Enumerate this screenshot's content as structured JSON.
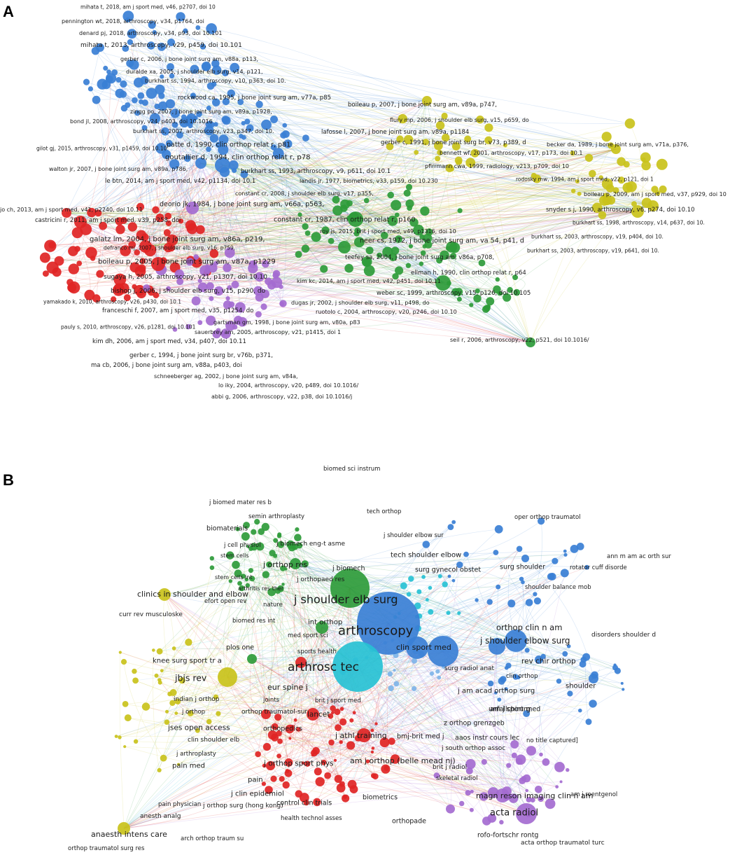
{
  "colors": {
    "blue": "#3a7fd5",
    "red": "#e02424",
    "green": "#2e9b3a",
    "yellow": "#c9c21b",
    "purple": "#a46bd0",
    "cyan": "#27c1d4",
    "lightblue": "#7fb4e8"
  },
  "panels": [
    {
      "letter": "A",
      "labels": [
        {
          "t": "mihata t, 2018, am j sport med, v46, p2707, doi 10",
          "c": "blue"
        },
        {
          "t": "pennington wt, 2018, arthroscopy, v34, p1764, doi",
          "c": "blue"
        },
        {
          "t": "denard pj, 2018, arthroscopy, v34, p93, doi 10.101",
          "c": "blue"
        },
        {
          "t": "mihata t, 2013, arthroscopy, v29, p459, doi 10.101",
          "c": "blue"
        },
        {
          "t": "gerber c, 2006, j bone joint surg am, v88a, p113,",
          "c": "blue"
        },
        {
          "t": "duralde xa, 2005, j shoulder elb surg, v14, p121,",
          "c": "blue"
        },
        {
          "t": "burkhart ss, 1994, arthroscopy, v10, p363, doi 10.",
          "c": "blue"
        },
        {
          "t": "rockwood ca, 1995, j bone joint surg am, v77a, p85",
          "c": "blue"
        },
        {
          "t": "zingg po, 2007, j bone joint surg am, v89a, p1928,",
          "c": "blue"
        },
        {
          "t": "bond jl, 2008, arthroscopy, v24, p403, doi 10.1016",
          "c": "blue"
        },
        {
          "t": "burkhart ss, 2007, arthroscopy, v23, p347, doi 10.",
          "c": "blue"
        },
        {
          "t": "gilot gj, 2015, arthroscopy, v31, p1459, doi 10.10",
          "c": "blue"
        },
        {
          "t": "patte d, 1990, clin orthop relat r, p81",
          "c": "blue"
        },
        {
          "t": "goutallier d, 1994, clin orthop relat r, p78",
          "c": "blue"
        },
        {
          "t": "walton jr, 2007, j bone joint surg am, v89a, p786,",
          "c": "blue"
        },
        {
          "t": "le btn, 2014, am j sport med, v42, p1134, doi 10.1",
          "c": "blue"
        },
        {
          "t": "burkhart ss, 1993, arthroscopy, v9, p611, doi 10.1",
          "c": "blue"
        },
        {
          "t": "landis jr, 1977, biometrics, v33, p159, doi 10.230",
          "c": "blue"
        },
        {
          "t": "lafosse l, 2007, j bone joint surg am, v89a, p1184",
          "c": "blue"
        },
        {
          "t": "boileau p, 2007, j bone joint surg am, v89a, p747,",
          "c": "yellow"
        },
        {
          "t": "flury mp, 2006, j shoulder elb surg, v15, p659, do",
          "c": "yellow"
        },
        {
          "t": "gerber c, 1991, j bone joint surg br, v73, p389, d",
          "c": "yellow"
        },
        {
          "t": "becker da, 1989, j bone joint surg am, v71a, p376,",
          "c": "yellow"
        },
        {
          "t": "bennett wf, 2001, arthroscopy, v17, p173, doi 10.1",
          "c": "yellow"
        },
        {
          "t": "pfirrmann cwa, 1999, radiology, v213, p709, doi 10",
          "c": "yellow"
        },
        {
          "t": "rodosky mw, 1994, am j sport med, v22, p121, doi 1",
          "c": "yellow"
        },
        {
          "t": "boileau p, 2009, am j sport med, v37, p929, doi 10",
          "c": "yellow"
        },
        {
          "t": "snyder s j, 1990, arthroscopy, v6, p274, doi 10.10",
          "c": "yellow"
        },
        {
          "t": "burkhart ss, 1998, arthroscopy, v14, p637, doi 10.",
          "c": "yellow"
        },
        {
          "t": "burkhart ss, 2003, arthroscopy, v19, p404, doi 10.",
          "c": "yellow"
        },
        {
          "t": "burkhart ss, 2003, arthroscopy, v19, p641, doi 10.",
          "c": "yellow"
        },
        {
          "t": "constant cr, 2008, j shoulder elb surg, v17, p355,",
          "c": "green"
        },
        {
          "t": "deorio jk, 1984, j bone joint surg am, v66a, p563,",
          "c": "green"
        },
        {
          "t": "constant cr, 1987, clin orthop relat r, p160",
          "c": "green"
        },
        {
          "t": "roy js, 2015, brit j sport med, v49, p1316, doi 10",
          "c": "green"
        },
        {
          "t": "neer cs, 1972, j bone joint surg am, va 54, p41, d",
          "c": "green"
        },
        {
          "t": "teefey sa, 2004, j bone joint surg am, v86a, p708,",
          "c": "green"
        },
        {
          "t": "ellman h, 1990, clin orthop relat r, p64",
          "c": "green"
        },
        {
          "t": "kim kc, 2014, am j sport med, v42, p451, doi 10.11",
          "c": "green"
        },
        {
          "t": "weber sc, 1999, arthroscopy, v15, p126, doi 10.105",
          "c": "green"
        },
        {
          "t": "dugas jr, 2002, j shoulder elb surg, v11, p498, do",
          "c": "green"
        },
        {
          "t": "ruotolo c, 2004, arthroscopy, v20, p246, doi 10.10",
          "c": "green"
        },
        {
          "t": "seil r, 2006, arthroscopy, v22, p521, doi 10.1016/",
          "c": "green"
        },
        {
          "t": "jo ch, 2013, am j sport med, v41, p2240, doi 10.11",
          "c": "red"
        },
        {
          "t": "castricini r, 2011, am j sport med, v39, p258, doi",
          "c": "red"
        },
        {
          "t": "galatz lm, 2004, j bone joint surg am, v86a, p219,",
          "c": "red"
        },
        {
          "t": "defranco mj, 2007, j shoulder elb surg, v16, p759,",
          "c": "red"
        },
        {
          "t": "boileau p, 2005, j bone joint surg am, v87a, p1229",
          "c": "red"
        },
        {
          "t": "sugaya h, 2005, arthroscopy, v21, p1307, doi 10.10",
          "c": "red"
        },
        {
          "t": "bishop j, 2006, j shoulder elb surg, v15, p290, do",
          "c": "red"
        },
        {
          "t": "yamakado k, 2010, arthroscopy, v26, p430, doi 10.1",
          "c": "red"
        },
        {
          "t": "franceschi f, 2007, am j sport med, v35, p1254, do",
          "c": "red"
        },
        {
          "t": "pauly s, 2010, arthroscopy, v26, p1281, doi 10.101",
          "c": "red"
        },
        {
          "t": "gartsman gm, 1998, j bone joint surg am, v80a, p83",
          "c": "purple"
        },
        {
          "t": "sauerbrey am, 2005, arthroscopy, v21, p1415, doi 1",
          "c": "purple"
        },
        {
          "t": "kim dh, 2006, am j sport med, v34, p407, doi 10.11",
          "c": "purple"
        },
        {
          "t": "gerber c, 1994, j bone joint surg br, v76b, p371,",
          "c": "purple"
        },
        {
          "t": "ma cb, 2006, j bone joint surg am, v88a, p403, doi",
          "c": "purple"
        },
        {
          "t": "schneeberger ag, 2002, j bone joint surg am, v84a,",
          "c": "purple"
        },
        {
          "t": "lo iky, 2004, arthroscopy, v20, p489, doi 10.1016/",
          "c": "purple"
        },
        {
          "t": "abbi g, 2006, arthroscopy, v22, p38, doi 10.1016/j",
          "c": "purple"
        }
      ]
    },
    {
      "letter": "B",
      "labels": [
        {
          "t": "biomed sci instrum",
          "c": "green"
        },
        {
          "t": "j biomed mater res b",
          "c": "green"
        },
        {
          "t": "semin arthroplasty",
          "c": "green"
        },
        {
          "t": "biomaterials",
          "c": "green"
        },
        {
          "t": "j cell physiol",
          "c": "green"
        },
        {
          "t": "j biomech eng-t asme",
          "c": "green"
        },
        {
          "t": "stem cells",
          "c": "green"
        },
        {
          "t": "j orthop res",
          "c": "green"
        },
        {
          "t": "j biomech",
          "c": "green"
        },
        {
          "t": "stem cells int",
          "c": "green"
        },
        {
          "t": "j orthopaed res",
          "c": "green"
        },
        {
          "t": "arthritis res ther",
          "c": "green"
        },
        {
          "t": "efort open rev",
          "c": "green"
        },
        {
          "t": "nature",
          "c": "green"
        },
        {
          "t": "biomed res int",
          "c": "green"
        },
        {
          "t": "int orthop",
          "c": "green"
        },
        {
          "t": "med sport sci",
          "c": "green"
        },
        {
          "t": "plos one",
          "c": "green"
        },
        {
          "t": "sports health",
          "c": "green"
        },
        {
          "t": "tech orthop",
          "c": "blue"
        },
        {
          "t": "oper orthop traumatol",
          "c": "blue"
        },
        {
          "t": "j shoulder elbow sur",
          "c": "blue"
        },
        {
          "t": "tech shoulder elbow",
          "c": "blue"
        },
        {
          "t": "surg gynecol obstet",
          "c": "blue"
        },
        {
          "t": "surg shoulder",
          "c": "blue"
        },
        {
          "t": "ann m am ac orth sur",
          "c": "blue"
        },
        {
          "t": "rotator cuff disorde",
          "c": "blue"
        },
        {
          "t": "shoulder balance mob",
          "c": "blue"
        },
        {
          "t": "arthroscopy",
          "c": "blue"
        },
        {
          "t": "clin sport med",
          "c": "blue"
        },
        {
          "t": "orthop clin n am",
          "c": "blue"
        },
        {
          "t": "j shoulder elbow surg",
          "c": "blue"
        },
        {
          "t": "disorders shoulder d",
          "c": "blue"
        },
        {
          "t": "surg radiol anat",
          "c": "blue"
        },
        {
          "t": "rev chir orthop",
          "c": "blue"
        },
        {
          "t": "clin orthop",
          "c": "blue"
        },
        {
          "t": "shoulder",
          "c": "blue"
        },
        {
          "t": "j am acad orthop surg",
          "c": "blue"
        },
        {
          "t": "am j sport med",
          "c": "green"
        },
        {
          "t": "j shoulder elb surg",
          "c": "cyan"
        },
        {
          "t": "arthrosc tec",
          "c": "yellow"
        },
        {
          "t": "clinics in shoulder and elbow",
          "c": "yellow"
        },
        {
          "t": "curr rev musculoske",
          "c": "yellow"
        },
        {
          "t": "knee surg sport tr a",
          "c": "yellow"
        },
        {
          "t": "jbjs rev",
          "c": "yellow"
        },
        {
          "t": "indian j orthop",
          "c": "yellow"
        },
        {
          "t": "j orthop",
          "c": "yellow"
        },
        {
          "t": "orthop traumatol-sur",
          "c": "yellow"
        },
        {
          "t": "jses open access",
          "c": "yellow"
        },
        {
          "t": "clin shoulder elb",
          "c": "yellow"
        },
        {
          "t": "j arthroplasty",
          "c": "yellow"
        },
        {
          "t": "pain med",
          "c": "yellow"
        },
        {
          "t": "pain physician",
          "c": "yellow"
        },
        {
          "t": "anesth analg",
          "c": "yellow"
        },
        {
          "t": "anaesth intens care",
          "c": "yellow"
        },
        {
          "t": "orthop traumatol surg res",
          "c": "yellow"
        },
        {
          "t": "arch orthop traum su",
          "c": "red"
        },
        {
          "t": "eur spine j",
          "c": "red"
        },
        {
          "t": "joints",
          "c": "red"
        },
        {
          "t": "brit j sport med",
          "c": "red"
        },
        {
          "t": "lancet",
          "c": "red"
        },
        {
          "t": "orthopedics",
          "c": "red"
        },
        {
          "t": "j athl training",
          "c": "red"
        },
        {
          "t": "bmj-brit med j",
          "c": "red"
        },
        {
          "t": "j orthop sport phys",
          "c": "red"
        },
        {
          "t": "am j orthop (belle mead nj)",
          "c": "red"
        },
        {
          "t": "pain",
          "c": "red"
        },
        {
          "t": "j clin epidemiol",
          "c": "red"
        },
        {
          "t": "control clin trials",
          "c": "red"
        },
        {
          "t": "j orthop surg (hong kong)",
          "c": "red"
        },
        {
          "t": "health technol asses",
          "c": "red"
        },
        {
          "t": "biometrics",
          "c": "red"
        },
        {
          "t": "orthopade",
          "c": "purple"
        },
        {
          "t": "unfallchirurg",
          "c": "purple"
        },
        {
          "t": "z orthop grenzgeb",
          "c": "purple"
        },
        {
          "t": "aaos instr cours lec",
          "c": "purple"
        },
        {
          "t": "no title captured]",
          "c": "purple"
        },
        {
          "t": "j south orthop assoc",
          "c": "purple"
        },
        {
          "t": "brit j radiol",
          "c": "purple"
        },
        {
          "t": "skeletal radiol",
          "c": "purple"
        },
        {
          "t": "magn reson imaging clin n am",
          "c": "purple"
        },
        {
          "t": "am j roentgenol",
          "c": "purple"
        },
        {
          "t": "acta radiol",
          "c": "purple"
        },
        {
          "t": "rofo-fortschr rontg",
          "c": "purple"
        },
        {
          "t": "acta orthop traumatol turc",
          "c": "blue"
        }
      ]
    }
  ]
}
